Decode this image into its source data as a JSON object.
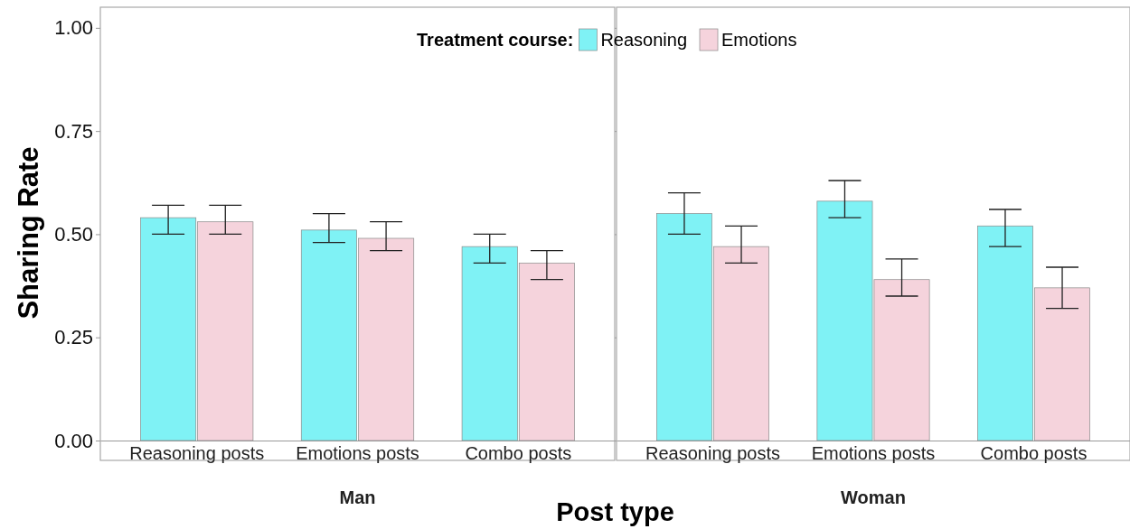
{
  "chart_data": [
    {
      "type": "bar",
      "title": "Man",
      "xlabel": "Post type",
      "ylabel": "Sharing Rate",
      "categories": [
        "Reasoning posts",
        "Emotions posts",
        "Combo posts"
      ],
      "series": [
        {
          "color": "#7ff2f5",
          "values": [
            0.54,
            0.51,
            0.47
          ],
          "errors": [
            [
              0.5,
              0.57
            ],
            [
              0.48,
              0.55
            ],
            [
              0.43,
              0.5
            ]
          ]
        },
        {
          "color": "#f5d3dc",
          "values": [
            0.53,
            0.49,
            0.43
          ],
          "errors": [
            [
              0.5,
              0.57
            ],
            [
              0.46,
              0.53
            ],
            [
              0.39,
              0.46
            ]
          ]
        }
      ],
      "ylim": [
        0,
        1.05
      ],
      "yticks": [
        {
          "value": 0,
          "label": "0.00"
        },
        0.25,
        {
          "value": 0.5,
          "label": "0.50"
        },
        0.75,
        {
          "value": 1,
          "label": "1.00"
        }
      ],
      "legend": false
    },
    {
      "type": "bar",
      "title": "Woman",
      "legend_title": "Treatment course:",
      "categories": [
        "Reasoning posts",
        "Emotions posts",
        "Combo posts"
      ],
      "series": [
        {
          "name": "Reasoning",
          "color": "#7ff2f5",
          "values": [
            0.55,
            0.58,
            0.52
          ],
          "errors": [
            [
              0.5,
              0.6
            ],
            [
              0.54,
              0.63
            ],
            [
              0.47,
              0.56
            ]
          ]
        },
        {
          "name": "Emotions",
          "color": "#f5d3dc",
          "values": [
            0.47,
            0.39,
            0.37
          ],
          "errors": [
            [
              0.43,
              0.52
            ],
            [
              0.35,
              0.44
            ],
            [
              0.32,
              0.42
            ]
          ]
        }
      ],
      "ylim": [
        0,
        1.05
      ],
      "yticks": [
        0,
        0.25,
        0.5,
        0.75,
        1
      ],
      "legend": "top",
      "tick_labels": "x"
    }
  ]
}
